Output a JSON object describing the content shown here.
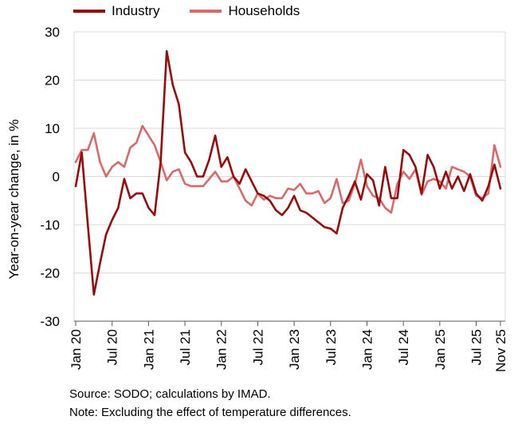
{
  "chart_data": {
    "type": "line",
    "title": "",
    "xlabel": "",
    "ylabel": "Year-on-year change, in %",
    "ylim": [
      -30,
      30
    ],
    "yticks": [
      30,
      20,
      10,
      0,
      -10,
      -20,
      -30
    ],
    "grid": true,
    "legend_position": "top",
    "x_start": "Jan 20",
    "x_tick_labels": [
      "Jan 20",
      "Jul 20",
      "Jan 21",
      "Jul 21",
      "Jan 22",
      "Jul 22",
      "Jan 23",
      "Jul 23",
      "Jan 24",
      "Jul 24",
      "Jan 25",
      "Jul 25",
      "Nov 25"
    ],
    "x_tick_months": [
      0,
      6,
      12,
      18,
      24,
      30,
      36,
      42,
      48,
      54,
      60,
      66,
      70
    ],
    "series": [
      {
        "name": "Industry",
        "color": "#9B0A0A",
        "values": [
          -2,
          5,
          -10,
          -24.5,
          -18,
          -12,
          -9,
          -6.5,
          -0.5,
          -4.5,
          -3.5,
          -3.5,
          -6.5,
          -8,
          3,
          26,
          19,
          15,
          5,
          3,
          0,
          0,
          3.5,
          8.5,
          2,
          4,
          0,
          -1.5,
          1.5,
          -1,
          -3.5,
          -4,
          -5,
          -7,
          -8,
          -6.5,
          -4,
          -7,
          -7.5,
          -8.5,
          -9.5,
          -10.5,
          -10.8,
          -11.8,
          -6.5,
          -4,
          -1,
          -4.8,
          0.5,
          -0.8,
          -6,
          2,
          -4.5,
          -4.5,
          5.5,
          4.5,
          2,
          -3.5,
          4.5,
          2,
          -2.5,
          1,
          -2.5,
          0,
          -3,
          0.5,
          -3.5,
          -5,
          -2,
          2.5,
          -2.5
        ]
      },
      {
        "name": "Households",
        "color": "#D96A6A",
        "values": [
          3,
          5.5,
          5.5,
          9,
          3,
          0,
          2,
          3,
          2,
          6,
          7,
          10.5,
          8.5,
          6.5,
          3,
          -0.8,
          1,
          1.5,
          -1.5,
          -2,
          -2,
          -2,
          -0.5,
          1,
          -1,
          -1,
          0,
          -2.5,
          -5,
          -6,
          -3.5,
          -4.8,
          -4,
          -4.5,
          -4.5,
          -2.5,
          -2.8,
          -1.5,
          -3.5,
          -3.5,
          -3,
          -5.5,
          -4.5,
          -0.5,
          -5.5,
          -5,
          -1.5,
          3.5,
          -2,
          -4,
          -4.5,
          -6.5,
          -7.5,
          -1.5,
          1,
          -0.5,
          1.5,
          -3.8,
          -1,
          -0.5,
          -1,
          -2.5,
          2,
          1.5,
          1,
          0,
          -4,
          -4.5,
          -3.5,
          6.5,
          2
        ]
      }
    ]
  },
  "footnotes": {
    "source": "Source: SODO; calculations by IMAD.",
    "note": "Note: Excluding the effect of temperature differences."
  }
}
